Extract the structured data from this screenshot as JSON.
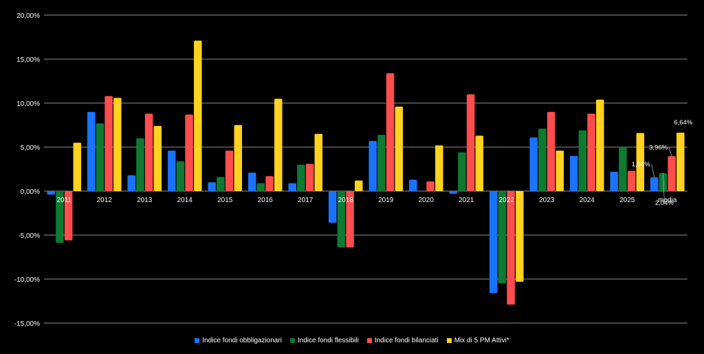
{
  "chart_data": {
    "type": "bar",
    "categories": [
      "2011",
      "2012",
      "2013",
      "2014",
      "2015",
      "2016",
      "2017",
      "2018",
      "2019",
      "2020",
      "2021",
      "2022",
      "2023",
      "2024",
      "2025",
      "media"
    ],
    "series": [
      {
        "name": "Indice fondi obbligazionari",
        "color": "#1a73ff",
        "values": [
          -0.4,
          9.0,
          1.8,
          4.6,
          1.0,
          2.1,
          0.9,
          -3.6,
          5.7,
          1.3,
          -0.3,
          -11.6,
          6.1,
          4.0,
          2.2,
          1.56
        ]
      },
      {
        "name": "Indice fondi flessibili",
        "color": "#0e7a32",
        "values": [
          -5.9,
          7.7,
          6.0,
          3.4,
          1.6,
          0.9,
          3.0,
          -6.4,
          6.4,
          0.0,
          4.4,
          -10.5,
          7.1,
          6.9,
          5.0,
          2.04
        ]
      },
      {
        "name": "Indice fondi bilanciati",
        "color": "#ff4d4d",
        "values": [
          -5.6,
          10.8,
          8.8,
          8.7,
          4.6,
          1.7,
          3.1,
          -6.4,
          13.4,
          1.1,
          11.0,
          -12.9,
          9.0,
          8.8,
          2.3,
          3.96
        ]
      },
      {
        "name": "Mix di 5 PM Attivi*",
        "color": "#ffd21f",
        "values": [
          5.5,
          10.6,
          7.4,
          17.1,
          7.5,
          10.5,
          6.5,
          1.2,
          9.6,
          5.2,
          6.3,
          -10.3,
          4.6,
          10.4,
          6.6,
          6.64
        ]
      }
    ],
    "ylim": [
      -15,
      20
    ],
    "yticks": [
      20,
      15,
      10,
      5,
      0,
      -5,
      -10,
      -15
    ],
    "ytick_labels": [
      "20,00%",
      "15,00%",
      "10,00%",
      "5,00%",
      "0,00%",
      "-5,00%",
      "-10,00%",
      "-15,00%"
    ],
    "data_labels": [
      {
        "category": "media",
        "series": 0,
        "text": "1,56%"
      },
      {
        "category": "media",
        "series": 1,
        "text": "2,04%"
      },
      {
        "category": "media",
        "series": 2,
        "text": "3,96%"
      },
      {
        "category": "media",
        "series": 3,
        "text": "6,64%"
      }
    ],
    "grid": true,
    "legend_position": "bottom",
    "background": "#000000",
    "text_color": "#ffffff",
    "grid_color": "#bfbfbf"
  }
}
